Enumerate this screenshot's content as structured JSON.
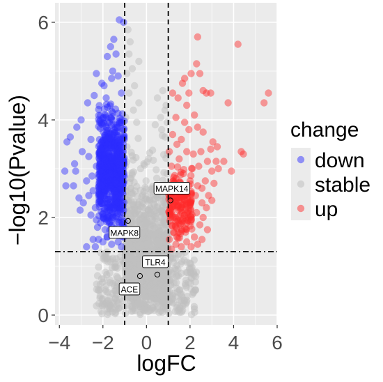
{
  "chart_data": {
    "type": "scatter",
    "title": "",
    "xlabel": "logFC",
    "ylabel": "−log10(Pvalue)",
    "xlim": [
      -4.2,
      6.0
    ],
    "ylim": [
      -0.2,
      6.4
    ],
    "x_ticks": [
      -4,
      -2,
      0,
      2,
      4,
      6
    ],
    "y_ticks": [
      0,
      2,
      4,
      6
    ],
    "x_tick_labels": [
      "−4",
      "−2",
      "0",
      "2",
      "4",
      "6"
    ],
    "y_tick_labels": [
      "0",
      "2",
      "4",
      "6"
    ],
    "grid": true,
    "threshold_lines": {
      "logFC": [
        -1,
        1
      ],
      "neg_log10_p": 1.3
    },
    "legend": {
      "title": "change",
      "placement": "right",
      "entries": [
        {
          "label": "down",
          "color": "#3333ff"
        },
        {
          "label": "stable",
          "color": "#bfbfbf"
        },
        {
          "label": "up",
          "color": "#ff3333"
        }
      ]
    },
    "series": [
      {
        "name": "down",
        "color": "#2d2dff",
        "points": [
          [
            -1.25,
            6.05
          ],
          [
            -1.05,
            6.0
          ],
          [
            -1.5,
            5.65
          ],
          [
            -1.65,
            5.5
          ],
          [
            -1.4,
            5.35
          ],
          [
            -1.8,
            5.3
          ],
          [
            -2.3,
            4.95
          ],
          [
            -1.55,
            5.0
          ],
          [
            -1.3,
            4.9
          ],
          [
            -1.6,
            4.85
          ],
          [
            -2.05,
            4.75
          ],
          [
            -1.95,
            4.7
          ],
          [
            -2.4,
            4.5
          ],
          [
            -1.15,
            4.55
          ],
          [
            -1.85,
            4.45
          ],
          [
            -2.7,
            4.35
          ],
          [
            -3.0,
            4.0
          ],
          [
            -3.2,
            3.85
          ],
          [
            -3.5,
            3.65
          ],
          [
            -3.65,
            3.55
          ],
          [
            -2.55,
            3.6
          ],
          [
            -2.95,
            3.35
          ],
          [
            -3.3,
            3.1
          ],
          [
            -3.25,
            2.95
          ],
          [
            -3.75,
            2.95
          ],
          [
            -3.7,
            2.65
          ],
          [
            -3.35,
            2.65
          ],
          [
            -2.65,
            3.25
          ],
          [
            -2.3,
            3.05
          ],
          [
            -2.5,
            2.85
          ],
          [
            -2.75,
            2.75
          ],
          [
            -2.45,
            2.55
          ],
          [
            -2.65,
            2.45
          ],
          [
            -3.1,
            2.4
          ],
          [
            -2.9,
            2.3
          ],
          [
            -3.05,
            2.15
          ],
          [
            -2.35,
            2.2
          ],
          [
            -2.55,
            2.05
          ],
          [
            -2.3,
            1.95
          ],
          [
            -2.0,
            2.0
          ],
          [
            -2.25,
            1.8
          ],
          [
            -1.9,
            1.75
          ],
          [
            -2.45,
            1.55
          ],
          [
            -2.2,
            1.55
          ],
          [
            -2.75,
            1.4
          ],
          [
            -2.35,
            1.4
          ],
          [
            -2.0,
            1.5
          ],
          [
            -1.8,
            1.6
          ],
          [
            -1.6,
            1.45
          ],
          [
            -1.3,
            1.5
          ],
          [
            -1.15,
            1.4
          ],
          [
            -1.05,
            1.6
          ],
          [
            -1.4,
            1.75
          ],
          [
            -1.1,
            1.85
          ],
          [
            -1.25,
            2.0
          ],
          [
            -1.05,
            2.15
          ]
        ],
        "dense_cloud": {
          "count": 700,
          "x_range": [
            -2.2,
            -1.02
          ],
          "y_range": [
            1.35,
            4.6
          ],
          "y_center": 3.0
        }
      },
      {
        "name": "stable",
        "color": "#bfbfbf",
        "points": [
          [
            -0.85,
            5.85
          ],
          [
            -0.75,
            5.6
          ],
          [
            -0.8,
            5.35
          ],
          [
            -0.35,
            5.2
          ],
          [
            -0.65,
            5.05
          ],
          [
            -0.9,
            4.95
          ],
          [
            -0.55,
            4.7
          ],
          [
            -0.8,
            4.55
          ],
          [
            0.5,
            4.45
          ],
          [
            0.75,
            4.6
          ],
          [
            -0.35,
            4.35
          ],
          [
            0.85,
            4.2
          ],
          [
            -0.6,
            4.2
          ],
          [
            0.65,
            4.05
          ],
          [
            0.9,
            4.3
          ],
          [
            -0.95,
            4.05
          ],
          [
            0.4,
            3.9
          ],
          [
            0.7,
            3.8
          ],
          [
            -0.45,
            3.95
          ],
          [
            0.95,
            3.95
          ],
          [
            0.85,
            3.65
          ]
        ],
        "dense_cloud": {
          "count": 1100,
          "x_range": [
            -1.0,
            1.0
          ],
          "y_range": [
            0.0,
            4.0
          ],
          "y_center": 0.6
        },
        "edge_clouds": [
          {
            "count": 110,
            "x_range": [
              -2.3,
              -1.02
            ],
            "y_range": [
              0.0,
              1.3
            ]
          },
          {
            "count": 110,
            "x_range": [
              1.02,
              2.3
            ],
            "y_range": [
              0.0,
              1.3
            ]
          }
        ]
      },
      {
        "name": "up",
        "color": "#ff2b2b",
        "points": [
          [
            5.6,
            4.55
          ],
          [
            5.4,
            4.35
          ],
          [
            4.2,
            5.55
          ],
          [
            2.35,
            5.7
          ],
          [
            2.45,
            4.95
          ],
          [
            3.75,
            4.35
          ],
          [
            4.35,
            3.35
          ],
          [
            4.45,
            3.3
          ],
          [
            3.9,
            2.95
          ],
          [
            3.3,
            3.0
          ],
          [
            3.55,
            3.15
          ],
          [
            2.3,
            5.15
          ],
          [
            2.05,
            4.95
          ],
          [
            1.75,
            4.85
          ],
          [
            1.65,
            4.75
          ],
          [
            2.6,
            4.6
          ],
          [
            1.95,
            4.55
          ],
          [
            2.75,
            4.55
          ],
          [
            2.95,
            4.55
          ],
          [
            1.85,
            4.3
          ],
          [
            1.2,
            4.55
          ],
          [
            1.45,
            4.45
          ],
          [
            2.2,
            4.1
          ],
          [
            1.35,
            4.05
          ],
          [
            1.75,
            3.95
          ],
          [
            2.35,
            3.85
          ],
          [
            2.6,
            3.75
          ],
          [
            1.95,
            3.8
          ],
          [
            3.05,
            3.55
          ],
          [
            3.25,
            3.45
          ],
          [
            2.95,
            3.4
          ],
          [
            2.5,
            3.35
          ],
          [
            2.15,
            3.3
          ],
          [
            2.8,
            3.15
          ],
          [
            3.2,
            3.15
          ],
          [
            2.4,
            3.05
          ],
          [
            3.0,
            2.95
          ],
          [
            2.7,
            2.75
          ],
          [
            3.1,
            2.7
          ],
          [
            2.35,
            2.65
          ],
          [
            2.55,
            2.6
          ],
          [
            2.85,
            2.45
          ],
          [
            3.0,
            2.35
          ],
          [
            2.55,
            2.3
          ],
          [
            2.75,
            2.2
          ],
          [
            2.3,
            2.1
          ],
          [
            2.6,
            2.0
          ],
          [
            2.45,
            1.85
          ],
          [
            2.8,
            1.75
          ],
          [
            2.2,
            1.6
          ],
          [
            2.55,
            1.55
          ],
          [
            2.35,
            1.45
          ],
          [
            2.05,
            1.4
          ],
          [
            1.85,
            1.5
          ],
          [
            1.6,
            1.4
          ],
          [
            1.35,
            1.45
          ],
          [
            1.15,
            1.35
          ],
          [
            1.05,
            1.55
          ],
          [
            1.25,
            1.7
          ],
          [
            1.55,
            1.85
          ],
          [
            1.1,
            2.0
          ],
          [
            1.45,
            2.15
          ],
          [
            1.75,
            2.05
          ],
          [
            1.2,
            2.35
          ],
          [
            1.6,
            2.5
          ],
          [
            1.05,
            2.6
          ],
          [
            1.35,
            2.8
          ],
          [
            1.7,
            2.9
          ],
          [
            1.15,
            3.05
          ],
          [
            1.5,
            3.2
          ],
          [
            1.05,
            3.35
          ],
          [
            1.4,
            3.5
          ],
          [
            1.2,
            3.7
          ],
          [
            1.6,
            3.6
          ],
          [
            1.85,
            3.35
          ],
          [
            2.0,
            2.75
          ],
          [
            2.1,
            3.0
          ],
          [
            2.25,
            2.45
          ],
          [
            1.95,
            2.3
          ],
          [
            2.05,
            1.95
          ],
          [
            1.8,
            1.7
          ],
          [
            1.4,
            1.6
          ],
          [
            1.55,
            2.7
          ],
          [
            1.3,
            2.25
          ]
        ],
        "dense_cloud": {
          "count": 160,
          "x_range": [
            1.02,
            2.1
          ],
          "y_range": [
            1.35,
            3.2
          ],
          "y_center": 2.3
        }
      }
    ],
    "labeled_genes": [
      {
        "label": "MAPK14",
        "x": 1.1,
        "y": 2.35
      },
      {
        "label": "MAPK8",
        "x": -0.85,
        "y": 1.93
      },
      {
        "label": "TLR4",
        "x": 0.5,
        "y": 0.83
      },
      {
        "label": "ACE",
        "x": -0.3,
        "y": 0.8
      }
    ]
  }
}
